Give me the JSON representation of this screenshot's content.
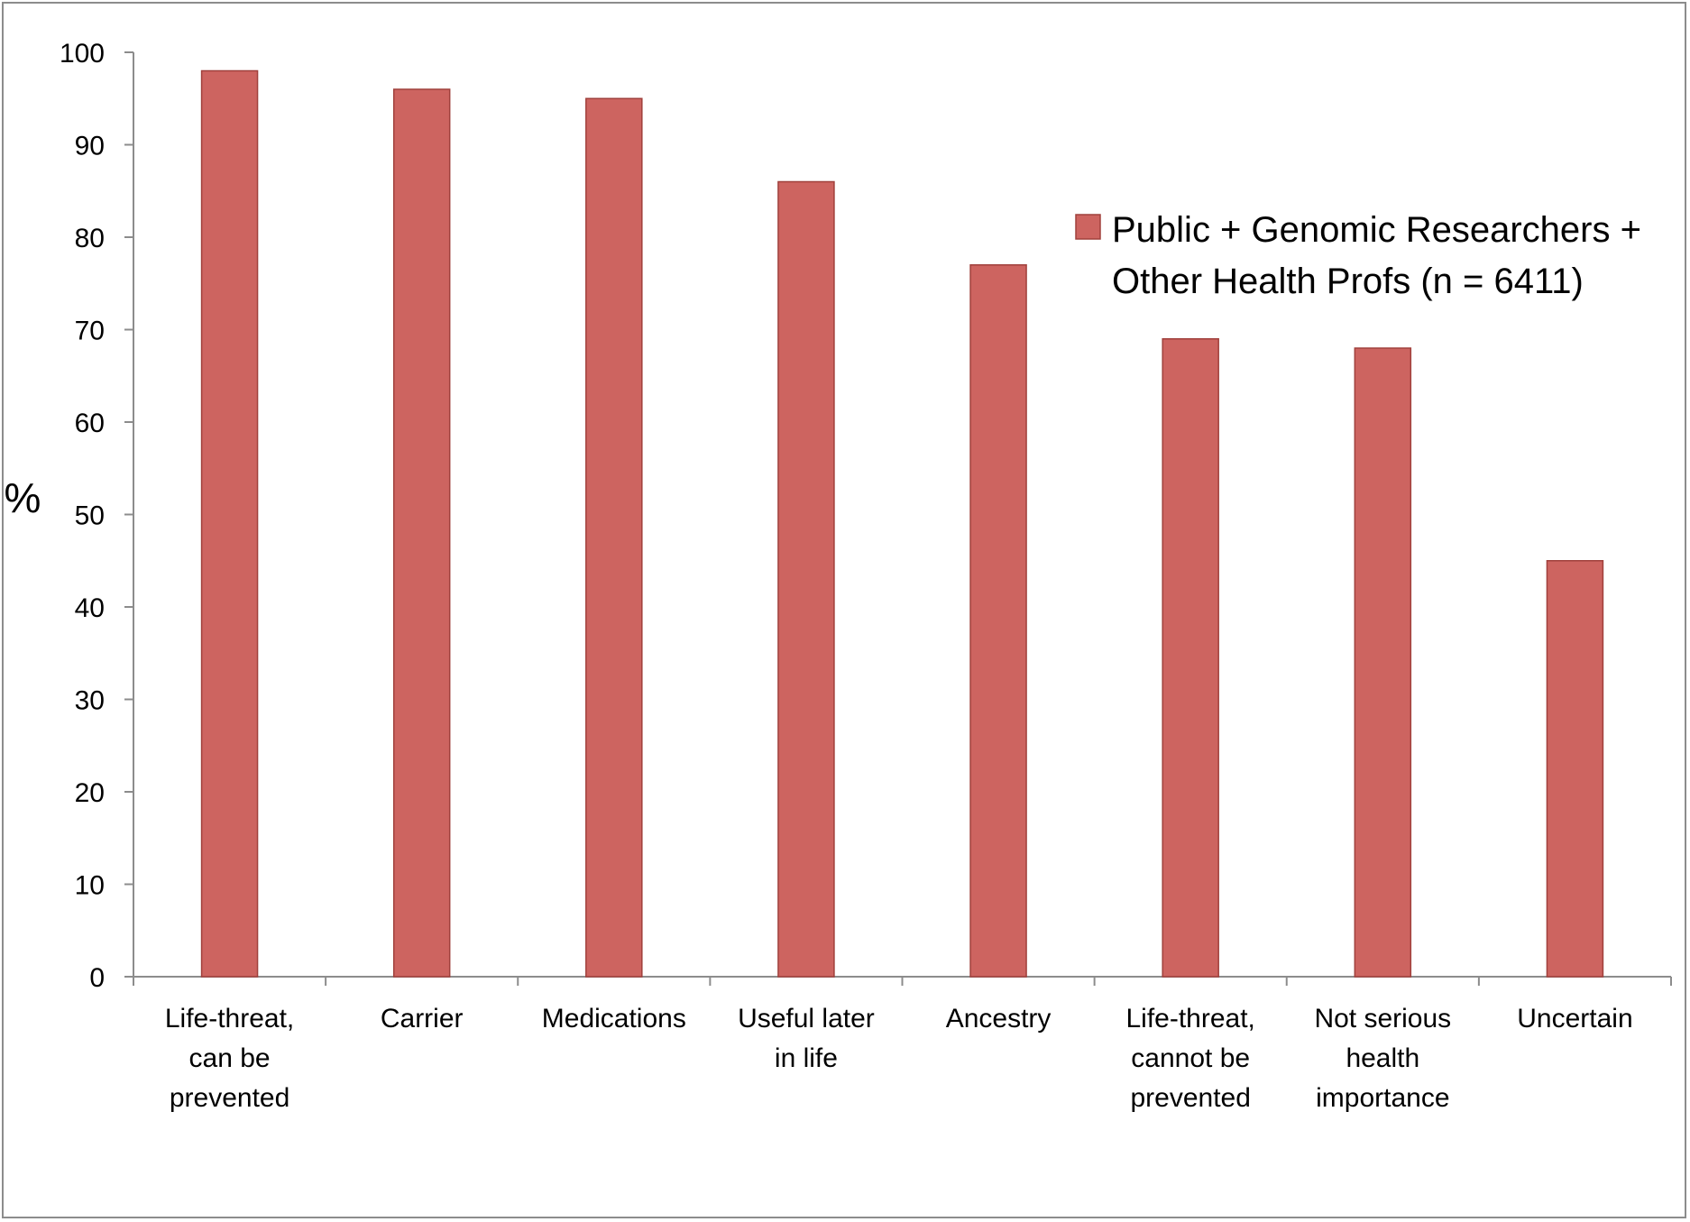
{
  "chart_data": {
    "type": "bar",
    "categories": [
      [
        "Life-threat,",
        "can be",
        "prevented"
      ],
      [
        "Carrier"
      ],
      [
        "Medications"
      ],
      [
        "Useful later",
        "in life"
      ],
      [
        "Ancestry"
      ],
      [
        "Life-threat,",
        "cannot be",
        "prevented"
      ],
      [
        "Not serious",
        "health",
        "importance"
      ],
      [
        "Uncertain"
      ]
    ],
    "series": [
      {
        "name": "Public + Genomic Researchers + Other Health Profs (n = 6411)",
        "name_lines": [
          "Public + Genomic Researchers +",
          "Other Health Profs (n = 6411)"
        ],
        "values": [
          98,
          96,
          95,
          86,
          77,
          69,
          68,
          45
        ],
        "color": "#cd6460"
      }
    ],
    "ylabel": "%",
    "ylim": [
      0,
      100
    ],
    "yticks": [
      0,
      10,
      20,
      30,
      40,
      50,
      60,
      70,
      80,
      90,
      100
    ],
    "grid": false,
    "legend": "right",
    "bar_edge_color": "#a0403c"
  }
}
